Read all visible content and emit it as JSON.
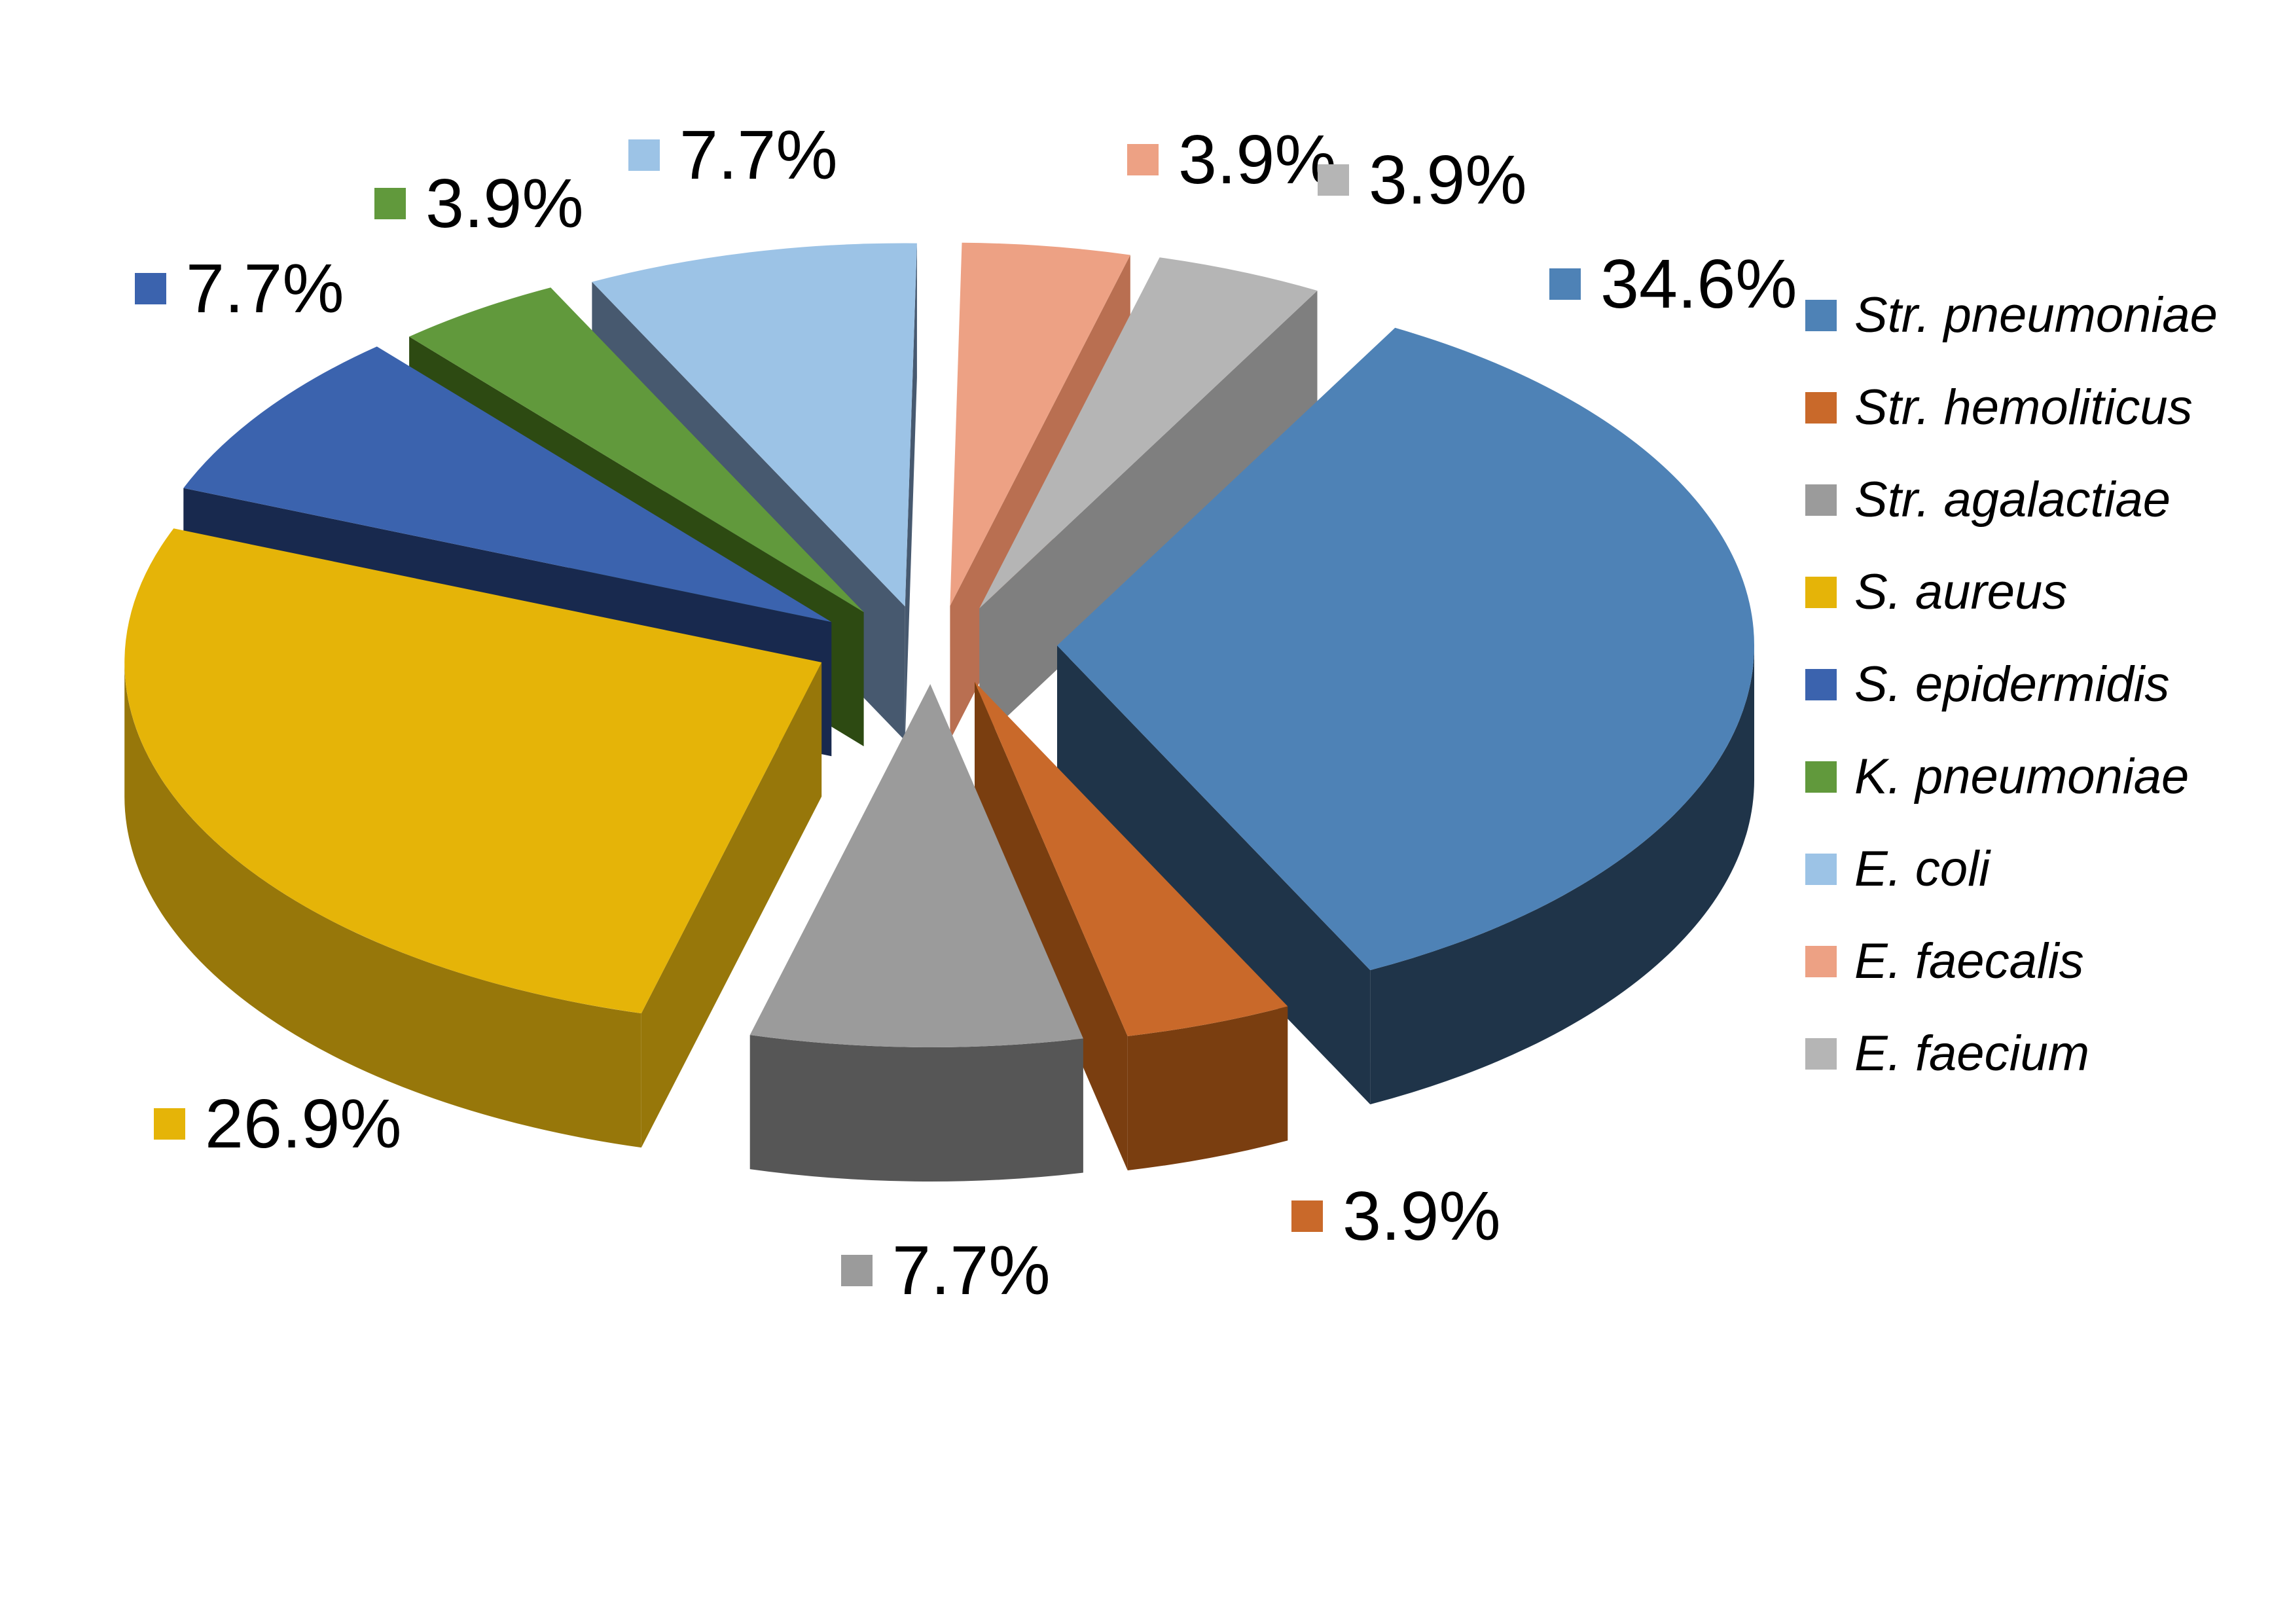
{
  "chart_data": {
    "type": "pie",
    "style": "3d-exploded",
    "title": "",
    "legend_position": "right",
    "first_slice_angle_deg": 29,
    "grid": "off",
    "background_color": "#ffffff",
    "label_color": "#000000",
    "unit": "%",
    "slices": [
      {
        "label": "Str. pneumoniae",
        "value": 34.6,
        "pct_label": "34.6%",
        "color": "#4e82b6",
        "side_color": "#1f3449"
      },
      {
        "label": "Str. hemoliticus",
        "value": 3.9,
        "pct_label": "3.9%",
        "color": "#c9692a",
        "side_color": "#7a3e10"
      },
      {
        "label": "Str. agalactiae",
        "value": 7.7,
        "pct_label": "7.7%",
        "color": "#9b9b9b",
        "side_color": "#565656"
      },
      {
        "label": "S. aureus",
        "value": 26.9,
        "pct_label": "26.9%",
        "color": "#e5b408",
        "side_color": "#97770a"
      },
      {
        "label": "S. epidermidis",
        "value": 7.7,
        "pct_label": "7.7%",
        "color": "#3b63ae",
        "side_color": "#18294e"
      },
      {
        "label": "K. pneumoniae",
        "value": 3.9,
        "pct_label": "3.9%",
        "color": "#61993c",
        "side_color": "#2d4a12"
      },
      {
        "label": "E. coli",
        "value": 7.7,
        "pct_label": "7.7%",
        "color": "#9cc3e6",
        "side_color": "#47596f"
      },
      {
        "label": "E. faecalis",
        "value": 3.9,
        "pct_label": "3.9%",
        "color": "#eda184",
        "side_color": "#b96f51"
      },
      {
        "label": "E. faecium",
        "value": 3.9,
        "pct_label": "3.9%",
        "color": "#b5b5b5",
        "side_color": "#7f7f7f"
      }
    ]
  }
}
